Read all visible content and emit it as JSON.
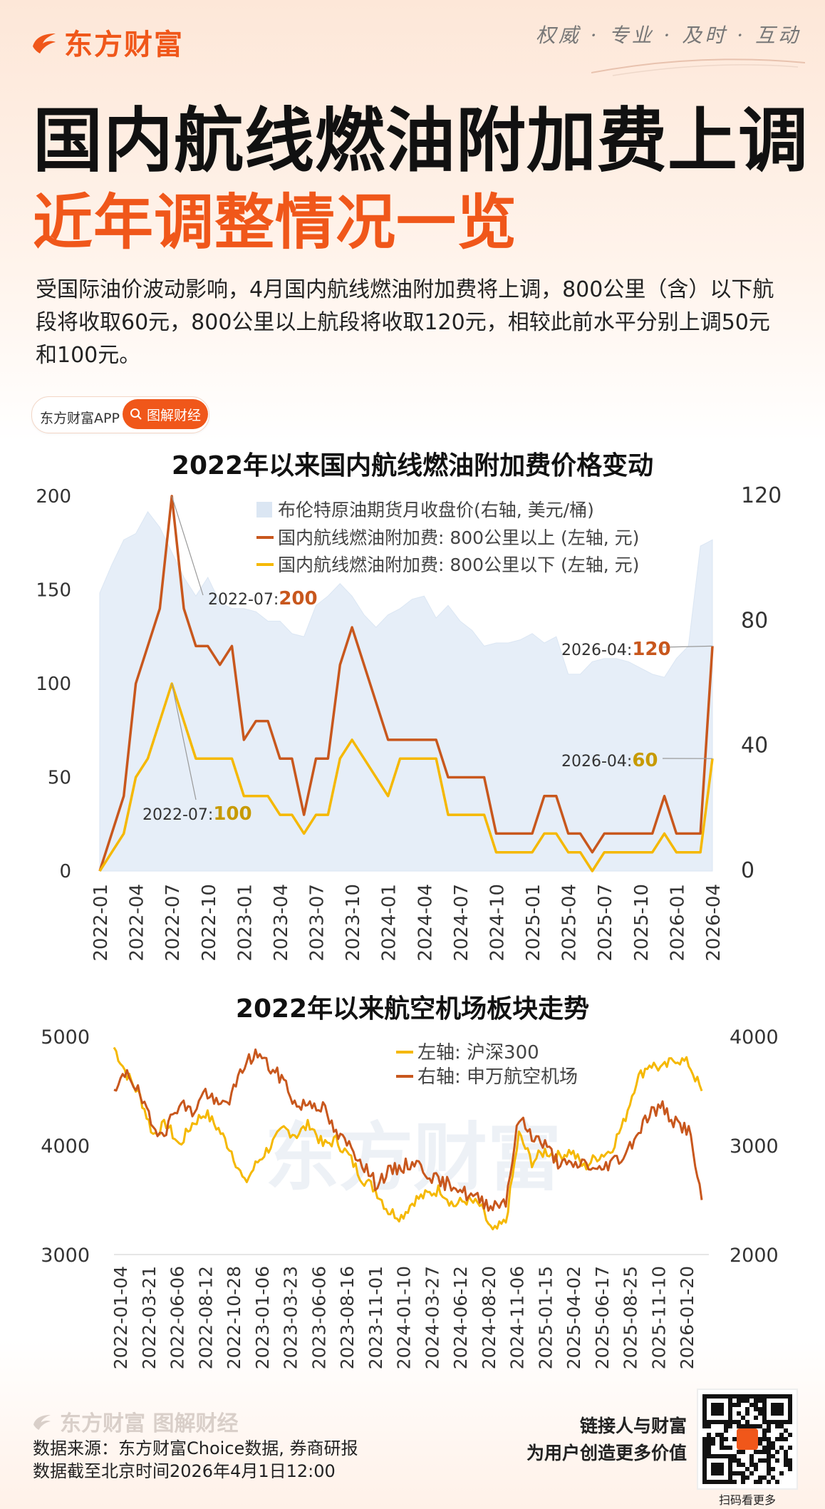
{
  "brand": {
    "name": "东方财富",
    "slogan": "权威 · 专业 · 及时 · 互动",
    "app": "东方财富APP",
    "tag": "图解财经"
  },
  "title": {
    "line1": "国内航线燃油附加费上调",
    "line2": "近年调整情况一览"
  },
  "intro": "受国际油价波动影响，4月国内航线燃油附加费将上调，800公里（含）以下航段将收取60元，800公里以上航段将收取120元，相较此前水平分别上调50元和100元。",
  "footer": {
    "source": "数据来源：东方财富Choice数据, 券商研报",
    "asof": "数据截至北京时间2026年4月1日12:00",
    "tag1": "链接人与财富",
    "tag2": "为用户创造更多价值",
    "qr_caption": "扫码看更多",
    "footer_logo": "东方财富 图解财经"
  },
  "colors": {
    "orange": "#f0571a",
    "dark_orange": "#c8571d",
    "yellow": "#f5b800",
    "brent": "#e6eef8",
    "brent_edge": "#dbe6f3"
  },
  "chart_data": [
    {
      "type": "line",
      "title": "2022年以来国内航线燃油附加费价格变动",
      "categories": [
        "2022-01",
        "2022-02",
        "2022-03",
        "2022-04",
        "2022-05",
        "2022-06",
        "2022-07",
        "2022-08",
        "2022-09",
        "2022-10",
        "2022-11",
        "2022-12",
        "2023-01",
        "2023-02",
        "2023-03",
        "2023-04",
        "2023-05",
        "2023-06",
        "2023-07",
        "2023-08",
        "2023-09",
        "2023-10",
        "2023-11",
        "2023-12",
        "2024-01",
        "2024-02",
        "2024-03",
        "2024-04",
        "2024-05",
        "2024-06",
        "2024-07",
        "2024-08",
        "2024-09",
        "2024-10",
        "2024-11",
        "2024-12",
        "2025-01",
        "2025-02",
        "2025-03",
        "2025-04",
        "2025-05",
        "2025-06",
        "2025-07",
        "2025-08",
        "2025-09",
        "2025-10",
        "2025-11",
        "2025-12",
        "2026-01",
        "2026-02",
        "2026-03",
        "2026-04"
      ],
      "tick_labels": [
        "2022-01",
        "2022-04",
        "2022-07",
        "2022-10",
        "2023-01",
        "2023-04",
        "2023-07",
        "2023-10",
        "2024-01",
        "2024-04",
        "2024-07",
        "2024-10",
        "2025-01",
        "2025-04",
        "2025-07",
        "2025-10",
        "2026-01",
        "2026-04"
      ],
      "left_axis": {
        "ylim": [
          0,
          200
        ],
        "ticks": [
          "0",
          "50",
          "100",
          "150",
          "200"
        ]
      },
      "right_axis": {
        "ylim": [
          0,
          120
        ],
        "ticks": [
          "0",
          "40",
          "80",
          "120"
        ]
      },
      "series": [
        {
          "name": "布伦特原油期货月收盘价(右轴, 美元/桶)",
          "axis": "right",
          "kind": "area",
          "values": [
            89,
            98,
            106,
            108,
            115,
            110,
            102,
            94,
            88,
            94,
            86,
            84,
            84,
            83,
            80,
            80,
            76,
            75,
            85,
            88,
            92,
            88,
            82,
            78,
            82,
            84,
            87,
            88,
            81,
            85,
            80,
            77,
            72,
            73,
            73,
            74,
            76,
            73,
            75,
            63,
            63,
            67,
            68,
            68,
            67,
            65,
            63,
            62,
            68,
            72,
            104,
            106
          ]
        },
        {
          "name": "国内航线燃油附加费: 800公里以上 (左轴, 元)",
          "axis": "left",
          "values": [
            0,
            20,
            40,
            100,
            120,
            140,
            200,
            140,
            120,
            120,
            110,
            120,
            70,
            80,
            80,
            60,
            60,
            30,
            60,
            60,
            110,
            130,
            110,
            90,
            70,
            70,
            70,
            70,
            70,
            50,
            50,
            50,
            50,
            20,
            20,
            20,
            20,
            40,
            40,
            20,
            20,
            10,
            20,
            20,
            20,
            20,
            20,
            40,
            20,
            20,
            20,
            120
          ]
        },
        {
          "name": "国内航线燃油附加费: 800公里以下 (左轴, 元)",
          "axis": "left",
          "values": [
            0,
            10,
            20,
            50,
            60,
            80,
            100,
            80,
            60,
            60,
            60,
            60,
            40,
            40,
            40,
            30,
            30,
            20,
            30,
            30,
            60,
            70,
            60,
            50,
            40,
            60,
            60,
            60,
            60,
            30,
            30,
            30,
            30,
            10,
            10,
            10,
            10,
            20,
            20,
            10,
            10,
            0,
            10,
            10,
            10,
            10,
            10,
            20,
            10,
            10,
            10,
            60
          ]
        }
      ],
      "annotations": [
        {
          "label": "2022-07:",
          "value": "200",
          "series": 1,
          "index": 6
        },
        {
          "label": "2022-07:",
          "value": "100",
          "series": 2,
          "index": 6
        },
        {
          "label": "2026-04:",
          "value": "120",
          "series": 1,
          "index": 51
        },
        {
          "label": "2026-04:",
          "value": "60",
          "series": 2,
          "index": 51
        }
      ]
    },
    {
      "type": "line",
      "title": "2022年以来航空机场板块走势",
      "tick_labels": [
        "2022-01-04",
        "2022-03-21",
        "2022-06-06",
        "2022-08-12",
        "2022-10-28",
        "2023-01-06",
        "2023-03-23",
        "2023-06-06",
        "2023-08-16",
        "2023-11-01",
        "2024-01-10",
        "2024-03-27",
        "2024-06-12",
        "2024-08-20",
        "2024-11-06",
        "2025-01-15",
        "2025-04-02",
        "2025-06-17",
        "2025-08-25",
        "2025-11-10",
        "2026-01-20"
      ],
      "left_axis": {
        "ylim": [
          3000,
          5000
        ],
        "ticks": [
          "3000",
          "4000",
          "5000"
        ]
      },
      "right_axis": {
        "ylim": [
          2000,
          4000
        ],
        "ticks": [
          "2000",
          "3000",
          "4000"
        ]
      },
      "series": [
        {
          "name": "左轴: 沪深300",
          "axis": "left",
          "values": [
            4900,
            4650,
            4450,
            4100,
            4200,
            4000,
            4200,
            4300,
            4150,
            3950,
            3650,
            3850,
            4000,
            4150,
            4100,
            4200,
            4000,
            4050,
            3900,
            3700,
            3600,
            3400,
            3350,
            3500,
            3550,
            3600,
            3450,
            3500,
            3450,
            3200,
            3300,
            4100,
            3850,
            3950,
            3900,
            3950,
            3800,
            3900,
            3950,
            4200,
            4600,
            4750,
            4700,
            4800,
            4750,
            4500
          ]
        },
        {
          "name": "右轴: 申万航空机场",
          "axis": "right",
          "values": [
            3450,
            3700,
            3450,
            3150,
            3150,
            3400,
            3300,
            3500,
            3350,
            3450,
            3750,
            3850,
            3700,
            3600,
            3350,
            3400,
            3350,
            3100,
            3000,
            2850,
            2650,
            2750,
            2800,
            2850,
            2750,
            2650,
            2650,
            2550,
            2500,
            2450,
            2500,
            3250,
            3100,
            3000,
            2850,
            2800,
            2850,
            2750,
            2850,
            2900,
            3100,
            3300,
            3350,
            3200,
            3150,
            2500
          ]
        }
      ]
    }
  ]
}
